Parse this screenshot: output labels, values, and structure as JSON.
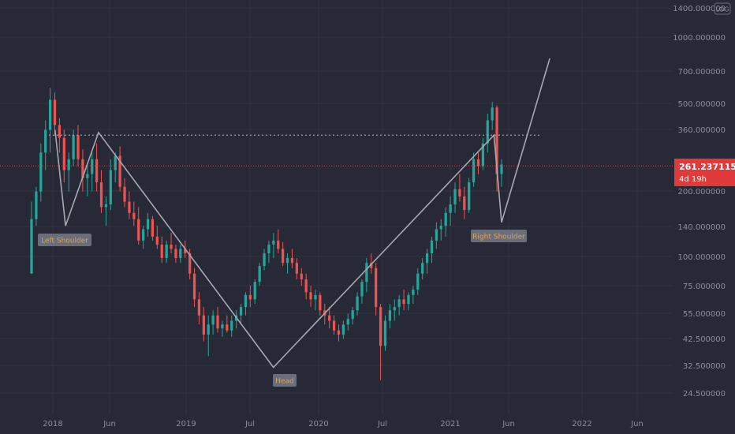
{
  "chart_data": {
    "type": "candlestick",
    "y_scale": "log",
    "x_ticks": [
      "2018",
      "Jun",
      "2019",
      "Jul",
      "2020",
      "Jul",
      "2021",
      "Jun",
      "2022",
      "Jun"
    ],
    "y_ticks": [
      "1400.000000",
      "1000.000000",
      "700.000000",
      "500.000000",
      "360.000000",
      "200.000000",
      "140.000000",
      "100.000000",
      "75.000000",
      "55.000000",
      "42.500000",
      "32.500000",
      "24.500000"
    ],
    "current_price": {
      "value": "261.237115",
      "countdown": "4d 19h",
      "color": "#e03a3a"
    },
    "resistance_level": 360,
    "annotations": [
      {
        "text": "Left Shoulder"
      },
      {
        "text": "Head"
      },
      {
        "text": "Right Shoulder"
      }
    ],
    "pattern_path": [
      {
        "date": "2018-01-07",
        "price": 380
      },
      {
        "date": "2018-02-05",
        "price": 140
      },
      {
        "date": "2018-05-07",
        "price": 370
      },
      {
        "date": "2019-09-02",
        "price": 32
      },
      {
        "date": "2021-05-03",
        "price": 360
      },
      {
        "date": "2021-05-24",
        "price": 145
      },
      {
        "date": "2021-10-04",
        "price": 800
      }
    ],
    "series": [
      {
        "name": "price",
        "values": [
          [
            85,
            95,
            180,
            150
          ],
          [
            150,
            210,
            140,
            200
          ],
          [
            200,
            330,
            180,
            300
          ],
          [
            300,
            420,
            250,
            380
          ],
          [
            380,
            590,
            300,
            520
          ],
          [
            520,
            560,
            360,
            400
          ],
          [
            400,
            430,
            300,
            350
          ],
          [
            350,
            380,
            220,
            250
          ],
          [
            250,
            300,
            200,
            280
          ],
          [
            280,
            380,
            260,
            360
          ],
          [
            360,
            400,
            260,
            280
          ],
          [
            280,
            310,
            200,
            230
          ],
          [
            230,
            260,
            190,
            240
          ],
          [
            240,
            300,
            200,
            280
          ],
          [
            280,
            330,
            200,
            220
          ],
          [
            220,
            250,
            160,
            170
          ],
          [
            170,
            190,
            140,
            175
          ],
          [
            175,
            280,
            165,
            250
          ],
          [
            250,
            300,
            220,
            290
          ],
          [
            290,
            320,
            200,
            210
          ],
          [
            210,
            230,
            170,
            180
          ],
          [
            180,
            200,
            150,
            160
          ],
          [
            160,
            180,
            140,
            150
          ],
          [
            150,
            170,
            115,
            120
          ],
          [
            120,
            140,
            110,
            135
          ],
          [
            135,
            160,
            125,
            150
          ],
          [
            150,
            155,
            120,
            125
          ],
          [
            125,
            140,
            110,
            115
          ],
          [
            115,
            125,
            95,
            100
          ],
          [
            100,
            120,
            95,
            115
          ],
          [
            115,
            130,
            105,
            110
          ],
          [
            110,
            115,
            95,
            100
          ],
          [
            100,
            115,
            95,
            110
          ],
          [
            110,
            120,
            100,
            105
          ],
          [
            105,
            110,
            80,
            85
          ],
          [
            85,
            90,
            60,
            65
          ],
          [
            65,
            70,
            50,
            55
          ],
          [
            55,
            60,
            42,
            45
          ],
          [
            45,
            55,
            36,
            50
          ],
          [
            50,
            58,
            45,
            55
          ],
          [
            55,
            60,
            46,
            48
          ],
          [
            48,
            52,
            44,
            50
          ],
          [
            50,
            55,
            46,
            47
          ],
          [
            47,
            55,
            44,
            52
          ],
          [
            52,
            58,
            48,
            55
          ],
          [
            55,
            62,
            50,
            60
          ],
          [
            60,
            70,
            55,
            68
          ],
          [
            68,
            75,
            60,
            65
          ],
          [
            65,
            80,
            62,
            78
          ],
          [
            78,
            95,
            75,
            92
          ],
          [
            92,
            110,
            88,
            105
          ],
          [
            105,
            120,
            95,
            115
          ],
          [
            115,
            130,
            100,
            120
          ],
          [
            120,
            135,
            105,
            110
          ],
          [
            110,
            118,
            92,
            95
          ],
          [
            95,
            105,
            85,
            100
          ],
          [
            100,
            110,
            90,
            95
          ],
          [
            95,
            100,
            80,
            85
          ],
          [
            85,
            90,
            75,
            80
          ],
          [
            80,
            85,
            65,
            70
          ],
          [
            70,
            75,
            60,
            65
          ],
          [
            65,
            72,
            58,
            68
          ],
          [
            68,
            70,
            55,
            58
          ],
          [
            58,
            62,
            50,
            55
          ],
          [
            55,
            60,
            48,
            52
          ],
          [
            52,
            55,
            45,
            47
          ],
          [
            47,
            50,
            42,
            45
          ],
          [
            45,
            52,
            43,
            50
          ],
          [
            50,
            56,
            47,
            53
          ],
          [
            53,
            60,
            50,
            58
          ],
          [
            58,
            70,
            55,
            67
          ],
          [
            67,
            80,
            62,
            78
          ],
          [
            78,
            100,
            70,
            95
          ],
          [
            95,
            105,
            85,
            90
          ],
          [
            90,
            95,
            55,
            60
          ],
          [
            60,
            62,
            28,
            40
          ],
          [
            40,
            55,
            38,
            52
          ],
          [
            52,
            62,
            48,
            58
          ],
          [
            58,
            65,
            52,
            60
          ],
          [
            60,
            68,
            55,
            65
          ],
          [
            65,
            72,
            58,
            62
          ],
          [
            62,
            70,
            58,
            68
          ],
          [
            68,
            75,
            62,
            72
          ],
          [
            72,
            90,
            68,
            85
          ],
          [
            85,
            100,
            80,
            95
          ],
          [
            95,
            110,
            85,
            105
          ],
          [
            105,
            125,
            95,
            120
          ],
          [
            120,
            145,
            110,
            135
          ],
          [
            135,
            150,
            120,
            140
          ],
          [
            140,
            170,
            125,
            160
          ],
          [
            160,
            190,
            140,
            175
          ],
          [
            175,
            220,
            160,
            205
          ],
          [
            205,
            240,
            180,
            190
          ],
          [
            190,
            210,
            150,
            165
          ],
          [
            165,
            230,
            160,
            220
          ],
          [
            220,
            300,
            210,
            280
          ],
          [
            280,
            300,
            240,
            260
          ],
          [
            260,
            350,
            250,
            330
          ],
          [
            330,
            450,
            300,
            420
          ],
          [
            420,
            510,
            380,
            480
          ],
          [
            480,
            490,
            200,
            240
          ],
          [
            240,
            280,
            210,
            265
          ]
        ]
      }
    ]
  }
}
